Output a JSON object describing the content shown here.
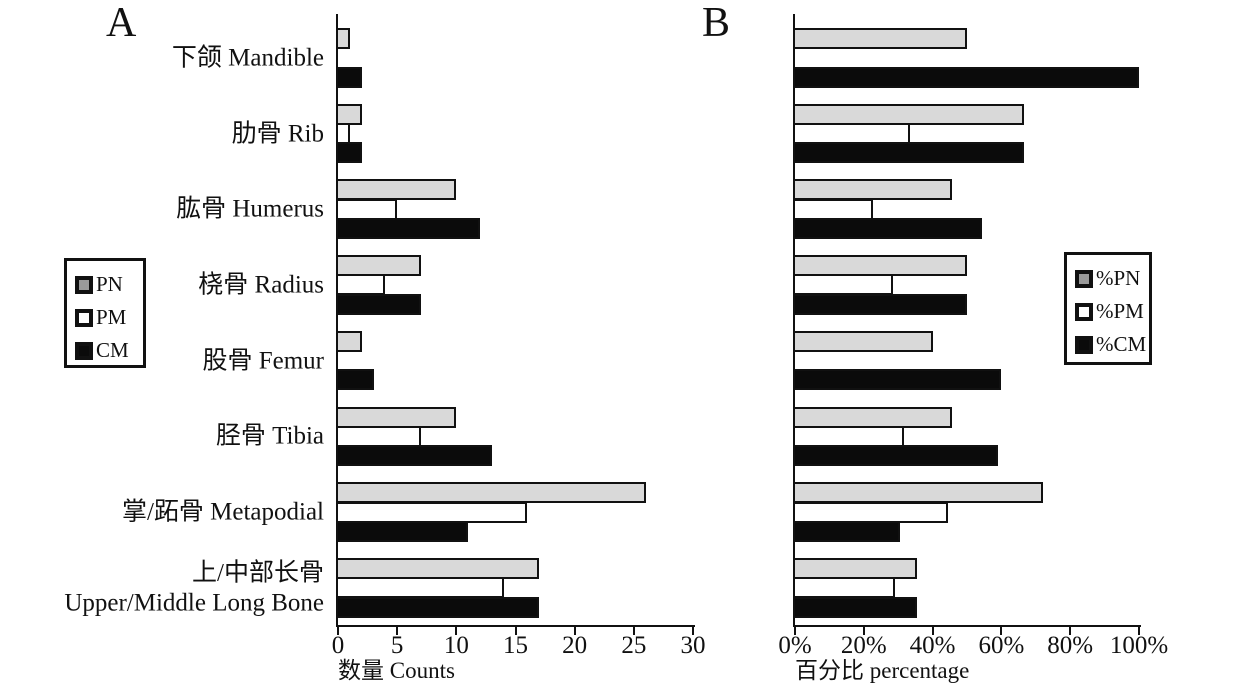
{
  "panels": [
    {
      "letter": "A"
    },
    {
      "letter": "B"
    }
  ],
  "chart_data": [
    {
      "type": "bar",
      "orientation": "horizontal",
      "panel": "A",
      "title": "",
      "categories": [
        "下颌 Mandible",
        "肋骨 Rib",
        "肱骨 Humerus",
        "桡骨 Radius",
        "股骨 Femur",
        "胫骨 Tibia",
        "掌/跖骨 Metapodial",
        "上/中部长骨\nUpper/Middle Long Bone"
      ],
      "series": [
        {
          "name": "PN",
          "fill": "#d9d9d9",
          "legend_fill": "#9a9a9a",
          "values": [
            1,
            2,
            10,
            7,
            2,
            10,
            26,
            17
          ]
        },
        {
          "name": "PM",
          "fill": "#ffffff",
          "legend_fill": "#ffffff",
          "values": [
            0,
            1,
            5,
            4,
            0,
            7,
            16,
            14
          ]
        },
        {
          "name": "CM",
          "fill": "#0b0b0b",
          "legend_fill": "#0b0b0b",
          "values": [
            2,
            2,
            12,
            7,
            3,
            13,
            11,
            17
          ]
        }
      ],
      "xlabel": "数量 Counts",
      "xlim": [
        0,
        30
      ],
      "xticks": [
        {
          "label": "0",
          "value": 0
        },
        {
          "label": "5",
          "value": 5
        },
        {
          "label": "10",
          "value": 10
        },
        {
          "label": "15",
          "value": 15
        },
        {
          "label": "20",
          "value": 20
        },
        {
          "label": "25",
          "value": 25
        },
        {
          "label": "30",
          "value": 30
        }
      ],
      "grid": false,
      "legend_position": "outside-left",
      "show_category_labels": true
    },
    {
      "type": "bar",
      "orientation": "horizontal",
      "panel": "B",
      "title": "",
      "categories": [
        "下颌 Mandible",
        "肋骨 Rib",
        "肱骨 Humerus",
        "桡骨 Radius",
        "股骨 Femur",
        "胫骨 Tibia",
        "掌/跖骨 Metapodial",
        "上/中部长骨\nUpper/Middle Long Bone"
      ],
      "series": [
        {
          "name": "%PN",
          "fill": "#d9d9d9",
          "legend_fill": "#9a9a9a",
          "values": [
            50,
            66.7,
            45.5,
            50,
            40,
            45.5,
            72.2,
            35.4
          ]
        },
        {
          "name": "%PM",
          "fill": "#ffffff",
          "legend_fill": "#ffffff",
          "values": [
            0,
            33.3,
            22.7,
            28.6,
            0,
            31.8,
            44.4,
            29.2
          ]
        },
        {
          "name": "%CM",
          "fill": "#0b0b0b",
          "legend_fill": "#0b0b0b",
          "values": [
            100,
            66.7,
            54.5,
            50,
            60,
            59.1,
            30.6,
            35.4
          ]
        }
      ],
      "xlabel": "百分比 percentage",
      "xlim": [
        0,
        100
      ],
      "xticks": [
        {
          "label": "0%",
          "value": 0
        },
        {
          "label": "20%",
          "value": 20
        },
        {
          "label": "40%",
          "value": 40
        },
        {
          "label": "60%",
          "value": 60
        },
        {
          "label": "80%",
          "value": 80
        },
        {
          "label": "100%",
          "value": 100
        }
      ],
      "grid": false,
      "legend_position": "outside-right",
      "show_category_labels": false
    }
  ]
}
